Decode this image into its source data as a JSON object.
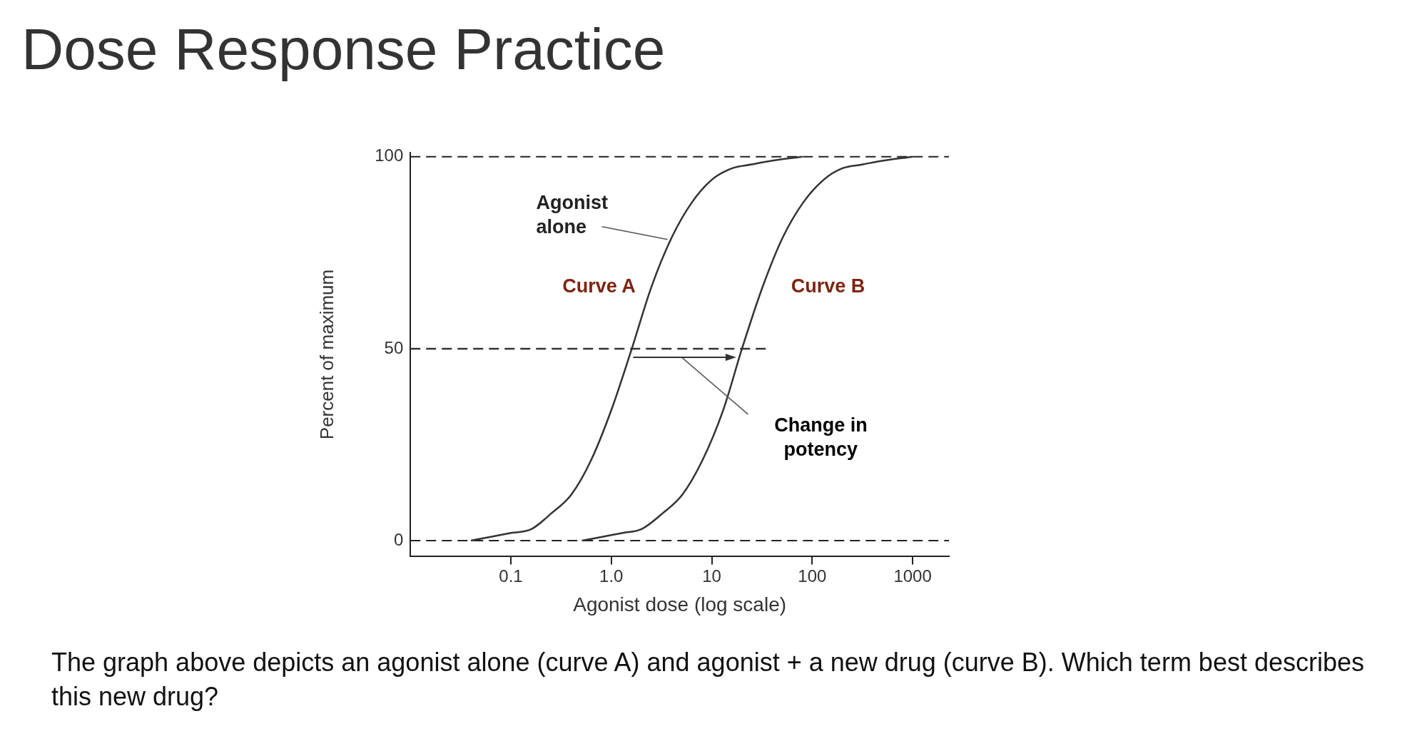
{
  "chart_data": {
    "type": "line",
    "title": "Dose Response Practice",
    "xlabel": "Agonist dose (log scale)",
    "ylabel": "Percent of maximum",
    "log": "x",
    "xlim": [
      0.01,
      2300
    ],
    "xticks": [
      0.1,
      {
        "value": 1,
        "label": "1.0"
      },
      10,
      100,
      1000
    ],
    "ylim": [
      -4,
      101
    ],
    "yticks": [
      0,
      50,
      100
    ],
    "grid": false,
    "marker": "none",
    "series": [
      {
        "color": "#333333",
        "line_style": "solid",
        "x": [
          0.04,
          0.063,
          0.1,
          0.16,
          0.25,
          0.4,
          0.63,
          1,
          1.6,
          2.5,
          4,
          6.3,
          10,
          16,
          25,
          40,
          80
        ],
        "values": [
          0,
          1,
          2,
          3,
          7,
          12,
          21,
          34,
          50,
          66,
          79,
          88,
          94,
          97,
          98,
          99,
          100
        ]
      },
      {
        "color": "#333333",
        "line_style": "solid",
        "x": [
          0.51,
          0.81,
          1.3,
          2,
          3.2,
          5.1,
          8.1,
          13,
          20,
          32,
          51,
          81,
          130,
          200,
          320,
          510,
          1000
        ],
        "values": [
          0,
          1,
          2,
          3,
          7,
          12,
          21,
          34,
          50,
          66,
          79,
          88,
          94,
          97,
          98,
          99,
          100
        ]
      },
      {
        "color": "#333333",
        "line_style": "dashed",
        "x": [
          0.01,
          35
        ],
        "values": [
          50,
          50
        ]
      }
    ],
    "ref_lines": [
      {
        "axis": "y",
        "value": 0,
        "line_style": "dashed"
      },
      {
        "axis": "y",
        "value": 100,
        "line_style": "dashed"
      }
    ],
    "annotations": [
      {
        "text": "Agonist alone",
        "x": 4,
        "y": 79
      },
      {
        "text": "Curve A",
        "x": 2.5,
        "y": 66
      },
      {
        "text": "Curve B",
        "x": 32,
        "y": 66
      },
      "Change in potency",
      "The graph above depicts an agonist alone (curve A) and agonist + a new drug (curve B). Which term best describes this new drug?"
    ]
  }
}
